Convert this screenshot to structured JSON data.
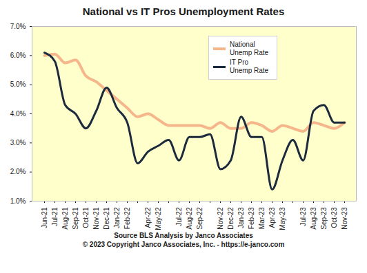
{
  "chart_data": {
    "type": "line",
    "title": "National vs IT Pros Unemployment Rates",
    "caption": [
      "Source BLS Analysis by Janco Associates",
      "© 2023 Copyright Janco Associates, Inc. - https://e-janco.com"
    ],
    "categories": [
      "Jun-21",
      "Jul-21",
      "Aug-21",
      "Sep-21",
      "Oct-21",
      "Nov-21",
      "Dec-21",
      "Jan-22",
      "Feb-22",
      null,
      "Apr-22",
      "May-22",
      null,
      "Jul-22",
      "Aug-22",
      "Sep-22",
      null,
      "Nov-22",
      "Dec-22",
      "Jan-23",
      "Feb-23",
      "Mar-23",
      "Apr-23",
      "May-23",
      null,
      "Jul-23",
      "Aug-23",
      "Sep-23",
      "Oct-23",
      "Nov-23"
    ],
    "series": [
      {
        "name": "National Unemp Rate",
        "color": "#f4b68a",
        "values": [
          6.0,
          6.05,
          5.75,
          5.85,
          5.3,
          5.1,
          4.8,
          4.5,
          4.2,
          3.9,
          4.0,
          3.8,
          3.6,
          3.6,
          3.6,
          3.6,
          3.5,
          3.7,
          3.5,
          3.5,
          3.7,
          3.6,
          3.4,
          3.6,
          3.5,
          3.4,
          3.7,
          3.6,
          3.5,
          3.7
        ]
      },
      {
        "name": "IT Pro Unemp Rate",
        "color": "#1c2a3d",
        "values": [
          6.1,
          5.8,
          4.3,
          4.0,
          3.5,
          4.1,
          4.9,
          4.2,
          3.7,
          2.3,
          2.7,
          2.9,
          3.1,
          2.4,
          3.2,
          3.2,
          3.3,
          2.1,
          2.4,
          3.9,
          3.2,
          3.2,
          1.4,
          2.4,
          3.1,
          2.4,
          4.1,
          4.3,
          3.7,
          3.7
        ]
      }
    ],
    "ylim": [
      1,
      7
    ],
    "yticks": [
      {
        "value": 1,
        "label": "1.0%"
      },
      {
        "value": 2,
        "label": "2.0%"
      },
      {
        "value": 3,
        "label": "3.0%"
      },
      {
        "value": 4,
        "label": "4.0%"
      },
      {
        "value": 5,
        "label": "5.0%"
      },
      {
        "value": 6,
        "label": "6.0%"
      },
      {
        "value": 7,
        "label": "7.0%"
      }
    ],
    "grid": false,
    "legend": "top-right"
  }
}
